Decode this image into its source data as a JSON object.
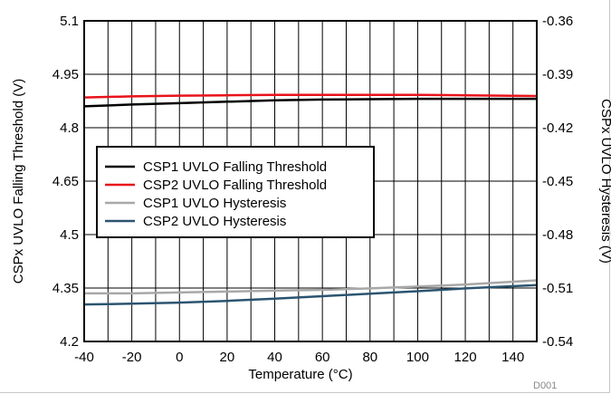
{
  "chart_data": {
    "type": "line",
    "title": "",
    "xlabel": "Temperature (°C)",
    "ylabel_left": "CSPx UVLO Falling Threshold (V)",
    "ylabel_right": "CSPx UVLO Hysteresis (V)",
    "xlim": [
      -40,
      150
    ],
    "ylim_left": [
      4.2,
      5.1
    ],
    "ylim_right": [
      -0.54,
      -0.36
    ],
    "x_ticks": [
      "-40",
      "-20",
      "0",
      "20",
      "40",
      "60",
      "80",
      "100",
      "120",
      "140"
    ],
    "y_left_ticks": [
      "4.2",
      "4.35",
      "4.5",
      "4.65",
      "4.8",
      "4.95",
      "5.1"
    ],
    "y_right_ticks": [
      "-0.54",
      "-0.51",
      "-0.48",
      "-0.45",
      "-0.42",
      "-0.39",
      "-0.36"
    ],
    "grid": true,
    "legend_position": "center-left",
    "figure_code": "D001",
    "series": [
      {
        "name": "CSP1 UVLO Falling Threshold",
        "axis": "left",
        "color": "#000000",
        "x": [
          -40,
          -20,
          0,
          20,
          40,
          60,
          80,
          100,
          120,
          150
        ],
        "y": [
          4.86,
          4.865,
          4.869,
          4.873,
          4.877,
          4.879,
          4.88,
          4.881,
          4.881,
          4.881
        ]
      },
      {
        "name": "CSP2 UVLO Falling Threshold",
        "axis": "left",
        "color": "#e8131b",
        "x": [
          -40,
          -20,
          0,
          20,
          40,
          60,
          80,
          100,
          120,
          150
        ],
        "y": [
          4.885,
          4.888,
          4.89,
          4.891,
          4.892,
          4.892,
          4.892,
          4.892,
          4.891,
          4.889
        ]
      },
      {
        "name": "CSP1 UVLO Hysteresis",
        "axis": "right",
        "color": "#a8a8a8",
        "x": [
          -40,
          -20,
          0,
          20,
          40,
          60,
          80,
          100,
          120,
          150
        ],
        "y": [
          -0.513,
          -0.513,
          -0.5125,
          -0.512,
          -0.5115,
          -0.511,
          -0.5102,
          -0.5092,
          -0.508,
          -0.5057
        ]
      },
      {
        "name": "CSP2 UVLO Hysteresis",
        "axis": "right",
        "color": "#2b5470",
        "x": [
          -40,
          -20,
          0,
          20,
          40,
          60,
          80,
          100,
          120,
          150
        ],
        "y": [
          -0.5192,
          -0.5188,
          -0.5182,
          -0.5172,
          -0.516,
          -0.5146,
          -0.5132,
          -0.5118,
          -0.5102,
          -0.5083
        ]
      }
    ]
  }
}
